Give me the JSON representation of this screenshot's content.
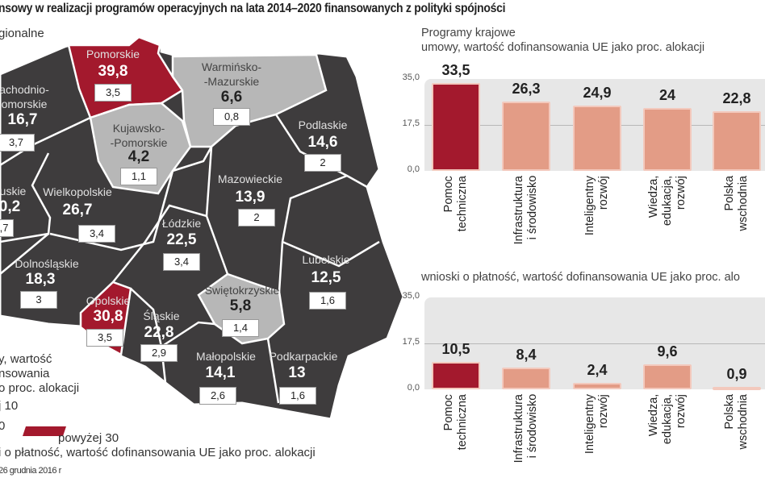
{
  "header": {
    "title": "nsowy w realizacji programów operacyjnych na lata 2014–2020 finansowanych z polityki spójności",
    "subtitle": "gionalne"
  },
  "map": {
    "colors": {
      "below_10": "#b7b7b7",
      "between": "#3e3c3d",
      "above_30": "#a3192d"
    },
    "regions": [
      {
        "name": "Pomorskie",
        "value": "39,8",
        "payments": "3,5",
        "class": "above_30"
      },
      {
        "name": "Warmińsko-\n-Mazurskie",
        "value": "6,6",
        "payments": "0,8",
        "class": "below_10"
      },
      {
        "name": "achodnio-\nomorskie",
        "value": "16,7",
        "payments": "3,7",
        "class": "between"
      },
      {
        "name": "Kujawsko-\n-Pomorskie",
        "value": "4,2",
        "payments": "1,1",
        "class": "below_10"
      },
      {
        "name": "Podlaskie",
        "value": "14,6",
        "payments": "2",
        "class": "between"
      },
      {
        "name": "uskie",
        "value": "0,2",
        "payments": ",7",
        "class": "between"
      },
      {
        "name": "Wielkopolskie",
        "value": "26,7",
        "payments": "3,4",
        "class": "between"
      },
      {
        "name": "Mazowieckie",
        "value": "13,9",
        "payments": "2",
        "class": "between"
      },
      {
        "name": "Łódzkie",
        "value": "22,5",
        "payments": "3,4",
        "class": "between"
      },
      {
        "name": "Lubelskie",
        "value": "12,5",
        "payments": "1,6",
        "class": "between"
      },
      {
        "name": "Dolnośląskie",
        "value": "18,3",
        "payments": "3",
        "class": "between"
      },
      {
        "name": "Opolskie",
        "value": "30,8",
        "payments": "3,5",
        "class": "above_30"
      },
      {
        "name": "Świętokrzyskie",
        "value": "5,8",
        "payments": "1,4",
        "class": "below_10"
      },
      {
        "name": "Śląskie",
        "value": "22,8",
        "payments": "2,9",
        "class": "between"
      },
      {
        "name": "Małopolskie",
        "value": "14,1",
        "payments": "2,6",
        "class": "between"
      },
      {
        "name": "Podkarpackie",
        "value": "13",
        "payments": "1,6",
        "class": "between"
      }
    ]
  },
  "legend": {
    "line1": "y, wartość",
    "line2": "nsowania",
    "line3": "o proc. alokacji",
    "item_below": "j 10",
    "item_mid": "0",
    "item_above": "powyżej 30",
    "payments_note": "i o płatność, wartość dofinansowania UE jako proc. alokacji",
    "source_date": "26 grudnia 2016 r"
  },
  "chart_data": [
    {
      "type": "bar",
      "title": "Programy krajowe",
      "subtitle": "umowy, wartość dofinansowania UE jako proc. alokacji",
      "categories": [
        "Pomoc\ntechniczna",
        "Infrastruktura\ni środowisko",
        "Inteligentny\nrozwój",
        "Wiedza,\nedukacja,\nrozwój",
        "Polska\nwschodnia"
      ],
      "values": [
        33.5,
        26.3,
        24.9,
        24,
        22.8
      ],
      "value_labels": [
        "33,5",
        "26,3",
        "24,9",
        "24",
        "22,8"
      ],
      "ylim": [
        0,
        35
      ],
      "yticks": [
        "0,0",
        "17,5",
        "35,0"
      ],
      "colors": [
        "#a3192d",
        "#e39c86",
        "#e39c86",
        "#e39c86",
        "#e39c86"
      ],
      "grid": true
    },
    {
      "type": "bar",
      "subtitle": "wnioski o płatność, wartość dofinansowania UE jako proc. alo",
      "categories": [
        "Pomoc\ntechniczna",
        "Infrastruktura\ni środowisko",
        "Inteligentny\nrozwój",
        "Wiedza,\nedukacja,\nrozwój",
        "Polska\nwschodnia"
      ],
      "values": [
        10.5,
        8.4,
        2.4,
        9.6,
        0.9
      ],
      "value_labels": [
        "10,5",
        "8,4",
        "2,4",
        "9,6",
        "0,9"
      ],
      "ylim": [
        0,
        35
      ],
      "yticks": [
        "0,0",
        "17,5",
        "35,0"
      ],
      "colors": [
        "#a3192d",
        "#e39c86",
        "#e39c86",
        "#e39c86",
        "#e39c86"
      ],
      "grid": true
    }
  ]
}
